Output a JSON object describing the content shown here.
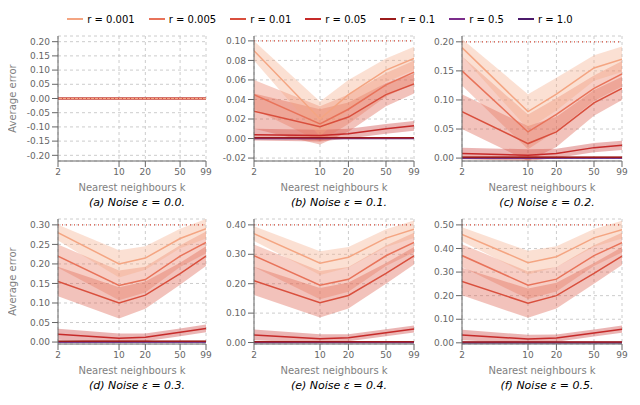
{
  "chart_data": [
    {
      "type": "line",
      "title": "(a) Noise ε = 0.0.",
      "x_label": "Nearest neighbours k",
      "y_label": "Average error",
      "legend": "top",
      "grid": true,
      "log": "x",
      "x": [
        2,
        10,
        20,
        50,
        99
      ],
      "xlim": [
        2,
        99
      ],
      "xticks": [
        2,
        10,
        20,
        50,
        99
      ],
      "ylim": [
        -0.22,
        0.22
      ],
      "yticks": [
        {
          "value": -0.2,
          "label": "-0.20"
        },
        -0.15,
        {
          "value": -0.1,
          "label": "-0.10"
        },
        -0.05,
        {
          "value": 0,
          "label": "0.00"
        },
        0.05,
        {
          "value": 0.1,
          "label": "0.10"
        },
        0.15,
        {
          "value": 0.2,
          "label": "0.20"
        }
      ],
      "annotations": [
        {
          "type": "hline",
          "y": 0.0,
          "color": "#d94f3d",
          "line_style": "dotted"
        }
      ],
      "series": [
        {
          "name": "r = 0.001",
          "color": "#f4a582",
          "values": [
            0.0,
            0.0,
            0.0,
            0.0,
            0.0
          ],
          "std": [
            0.0015,
            0.0015,
            0.0015,
            0.0015,
            0.0015
          ]
        },
        {
          "name": "r = 0.005",
          "color": "#e8735a",
          "values": [
            0.0,
            0.0,
            0.0,
            0.0,
            0.0
          ],
          "std": [
            0.001,
            0.001,
            0.001,
            0.001,
            0.001
          ]
        },
        {
          "name": "r = 0.01",
          "color": "#d94f3d",
          "values": [
            0.0,
            0.0,
            0.0,
            0.0,
            0.0
          ],
          "std": [
            0.0008,
            0.0008,
            0.0008,
            0.0008,
            0.0008
          ]
        },
        {
          "name": "r = 0.05",
          "color": "#c62a29",
          "values": [
            0.0,
            0.0,
            0.0,
            0.0,
            0.0
          ],
          "std": [
            0.0005,
            0.0005,
            0.0005,
            0.0005,
            0.0005
          ]
        },
        {
          "name": "r = 0.1",
          "color": "#9b1b1b",
          "values": [
            0.0,
            0.0,
            0.0,
            0.0,
            0.0
          ],
          "std": [
            0.0003,
            0.0003,
            0.0003,
            0.0003,
            0.0003
          ]
        },
        {
          "name": "r = 0.5",
          "color": "#7b2d8b",
          "values": [
            0.0,
            0.0,
            0.0,
            0.0,
            0.0
          ],
          "std": [
            0.0002,
            0.0002,
            0.0002,
            0.0002,
            0.0002
          ]
        },
        {
          "name": "r = 1.0",
          "color": "#4b1a6b",
          "values": [
            0.0,
            0.0,
            0.0,
            0.0,
            0.0
          ],
          "std": [
            0.0001,
            0.0001,
            0.0001,
            0.0001,
            0.0001
          ]
        }
      ]
    },
    {
      "type": "line",
      "title": "(b) Noise ε = 0.1.",
      "x_label": "Nearest neighbours k",
      "grid": true,
      "log": "x",
      "x": [
        2,
        10,
        20,
        50,
        99
      ],
      "xlim": [
        2,
        99
      ],
      "xticks": [
        2,
        10,
        20,
        50,
        99
      ],
      "ylim": [
        -0.023,
        0.105
      ],
      "yticks": [
        -0.02,
        {
          "value": 0,
          "label": "0.00"
        },
        0.02,
        0.04,
        0.06,
        0.08,
        {
          "value": 0.1,
          "label": "0.10"
        }
      ],
      "annotations": [
        {
          "type": "hline",
          "y": 0.1,
          "color": "#d94f3d",
          "line_style": "dotted"
        }
      ],
      "series": [
        {
          "name": "r = 0.001",
          "color": "#f4a582",
          "values": [
            0.09,
            0.02,
            0.045,
            0.07,
            0.082
          ],
          "std": [
            0.01,
            0.018,
            0.015,
            0.012,
            0.012
          ]
        },
        {
          "name": "r = 0.005",
          "color": "#e8735a",
          "values": [
            0.045,
            0.015,
            0.03,
            0.055,
            0.068
          ],
          "std": [
            0.015,
            0.018,
            0.015,
            0.012,
            0.012
          ]
        },
        {
          "name": "r = 0.01",
          "color": "#d94f3d",
          "values": [
            0.028,
            0.012,
            0.022,
            0.045,
            0.056
          ],
          "std": [
            0.018,
            0.018,
            0.015,
            0.012,
            0.01
          ]
        },
        {
          "name": "r = 0.05",
          "color": "#c62a29",
          "values": [
            0.004,
            0.003,
            0.005,
            0.01,
            0.013
          ],
          "std": [
            0.006,
            0.006,
            0.005,
            0.005,
            0.005
          ]
        },
        {
          "name": "r = 0.1",
          "color": "#9b1b1b",
          "values": [
            0.0008,
            0.0008,
            0.0008,
            0.0008,
            0.0008
          ],
          "std": [
            0.0008,
            0.0008,
            0.0008,
            0.0008,
            0.0008
          ]
        },
        {
          "name": "r = 0.5",
          "color": "#7b2d8b",
          "values": [
            0.0002,
            0.0002,
            0.0002,
            0.0002,
            0.0002
          ],
          "std": [
            0.0003,
            0.0003,
            0.0003,
            0.0003,
            0.0003
          ]
        },
        {
          "name": "r = 1.0",
          "color": "#4b1a6b",
          "values": [
            0.0001,
            0.0001,
            0.0001,
            0.0001,
            0.0001
          ],
          "std": [
            0.0001,
            0.0001,
            0.0001,
            0.0001,
            0.0001
          ]
        }
      ]
    },
    {
      "type": "line",
      "title": "(c) Noise ε = 0.2.",
      "x_label": "Nearest neighbours k",
      "grid": true,
      "log": "x",
      "x": [
        2,
        10,
        20,
        50,
        99
      ],
      "xlim": [
        2,
        99
      ],
      "xticks": [
        2,
        10,
        20,
        50,
        99
      ],
      "ylim": [
        -0.005,
        0.21
      ],
      "yticks": [
        {
          "value": 0,
          "label": "0.00"
        },
        0.05,
        {
          "value": 0.1,
          "label": "0.10"
        },
        0.15,
        {
          "value": 0.2,
          "label": "0.20"
        }
      ],
      "annotations": [
        {
          "type": "hline",
          "y": 0.2,
          "color": "#d94f3d",
          "line_style": "dotted"
        }
      ],
      "series": [
        {
          "name": "r = 0.001",
          "color": "#f4a582",
          "values": [
            0.19,
            0.08,
            0.11,
            0.155,
            0.17
          ],
          "std": [
            0.015,
            0.03,
            0.028,
            0.022,
            0.022
          ]
        },
        {
          "name": "r = 0.005",
          "color": "#e8735a",
          "values": [
            0.15,
            0.045,
            0.075,
            0.12,
            0.145
          ],
          "std": [
            0.025,
            0.03,
            0.028,
            0.022,
            0.022
          ]
        },
        {
          "name": "r = 0.01",
          "color": "#d94f3d",
          "values": [
            0.08,
            0.025,
            0.045,
            0.095,
            0.12
          ],
          "std": [
            0.03,
            0.03,
            0.026,
            0.022,
            0.02
          ]
        },
        {
          "name": "r = 0.05",
          "color": "#c62a29",
          "values": [
            0.008,
            0.005,
            0.008,
            0.018,
            0.022
          ],
          "std": [
            0.01,
            0.01,
            0.008,
            0.008,
            0.008
          ]
        },
        {
          "name": "r = 0.1",
          "color": "#9b1b1b",
          "values": [
            0.0015,
            0.0015,
            0.0015,
            0.0015,
            0.0015
          ],
          "std": [
            0.0015,
            0.0015,
            0.0015,
            0.0015,
            0.0015
          ]
        },
        {
          "name": "r = 0.5",
          "color": "#7b2d8b",
          "values": [
            0.0004,
            0.0004,
            0.0004,
            0.0004,
            0.0004
          ],
          "std": [
            0.0005,
            0.0005,
            0.0005,
            0.0005,
            0.0005
          ]
        },
        {
          "name": "r = 1.0",
          "color": "#4b1a6b",
          "values": [
            0.0002,
            0.0002,
            0.0002,
            0.0002,
            0.0002
          ],
          "std": [
            0.0002,
            0.0002,
            0.0002,
            0.0002,
            0.0002
          ]
        }
      ]
    },
    {
      "type": "line",
      "title": "(d) Noise ε = 0.3.",
      "x_label": "Nearest neighbours k",
      "y_label": "Average error",
      "grid": true,
      "log": "x",
      "x": [
        2,
        10,
        20,
        50,
        99
      ],
      "xlim": [
        2,
        99
      ],
      "xticks": [
        2,
        10,
        20,
        50,
        99
      ],
      "ylim": [
        -0.005,
        0.315
      ],
      "yticks": [
        {
          "value": 0,
          "label": "0.00"
        },
        0.05,
        {
          "value": 0.1,
          "label": "0.10"
        },
        0.15,
        {
          "value": 0.2,
          "label": "0.20"
        },
        0.25,
        {
          "value": 0.3,
          "label": "0.30"
        }
      ],
      "annotations": [
        {
          "type": "hline",
          "y": 0.3,
          "color": "#d94f3d",
          "line_style": "dotted"
        }
      ],
      "series": [
        {
          "name": "r = 0.001",
          "color": "#f4a582",
          "values": [
            0.28,
            0.2,
            0.215,
            0.265,
            0.29
          ],
          "std": [
            0.02,
            0.035,
            0.03,
            0.025,
            0.025
          ]
        },
        {
          "name": "r = 0.005",
          "color": "#e8735a",
          "values": [
            0.22,
            0.145,
            0.16,
            0.22,
            0.255
          ],
          "std": [
            0.03,
            0.038,
            0.033,
            0.028,
            0.028
          ]
        },
        {
          "name": "r = 0.01",
          "color": "#d94f3d",
          "values": [
            0.155,
            0.1,
            0.12,
            0.175,
            0.22
          ],
          "std": [
            0.038,
            0.04,
            0.035,
            0.028,
            0.025
          ]
        },
        {
          "name": "r = 0.05",
          "color": "#c62a29",
          "values": [
            0.02,
            0.01,
            0.012,
            0.025,
            0.035
          ],
          "std": [
            0.014,
            0.012,
            0.01,
            0.01,
            0.01
          ]
        },
        {
          "name": "r = 0.1",
          "color": "#9b1b1b",
          "values": [
            0.002,
            0.002,
            0.002,
            0.002,
            0.002
          ],
          "std": [
            0.002,
            0.002,
            0.002,
            0.002,
            0.002
          ]
        },
        {
          "name": "r = 0.5",
          "color": "#7b2d8b",
          "values": [
            0.001,
            0.001,
            0.001,
            0.001,
            0.001
          ],
          "std": [
            0.0008,
            0.0008,
            0.0008,
            0.0008,
            0.0008
          ]
        },
        {
          "name": "r = 1.0",
          "color": "#4b1a6b",
          "values": [
            0.0003,
            0.0003,
            0.0003,
            0.0003,
            0.0003
          ],
          "std": [
            0.0003,
            0.0003,
            0.0003,
            0.0003,
            0.0003
          ]
        }
      ]
    },
    {
      "type": "line",
      "title": "(e) Noise ε = 0.4.",
      "x_label": "Nearest neighbours k",
      "grid": true,
      "log": "x",
      "x": [
        2,
        10,
        20,
        50,
        99
      ],
      "xlim": [
        2,
        99
      ],
      "xticks": [
        2,
        10,
        20,
        50,
        99
      ],
      "ylim": [
        -0.005,
        0.42
      ],
      "yticks": [
        {
          "value": 0,
          "label": "0.00"
        },
        {
          "value": 0.1,
          "label": "0.10"
        },
        {
          "value": 0.2,
          "label": "0.20"
        },
        {
          "value": 0.3,
          "label": "0.30"
        },
        {
          "value": 0.4,
          "label": "0.40"
        }
      ],
      "annotations": [
        {
          "type": "hline",
          "y": 0.4,
          "color": "#d94f3d",
          "line_style": "dotted"
        }
      ],
      "series": [
        {
          "name": "r = 0.001",
          "color": "#f4a582",
          "values": [
            0.37,
            0.27,
            0.29,
            0.355,
            0.385
          ],
          "std": [
            0.025,
            0.04,
            0.035,
            0.03,
            0.03
          ]
        },
        {
          "name": "r = 0.005",
          "color": "#e8735a",
          "values": [
            0.295,
            0.195,
            0.215,
            0.295,
            0.34
          ],
          "std": [
            0.038,
            0.048,
            0.042,
            0.035,
            0.033
          ]
        },
        {
          "name": "r = 0.01",
          "color": "#d94f3d",
          "values": [
            0.21,
            0.135,
            0.16,
            0.235,
            0.295
          ],
          "std": [
            0.048,
            0.05,
            0.044,
            0.035,
            0.03
          ]
        },
        {
          "name": "r = 0.05",
          "color": "#c62a29",
          "values": [
            0.026,
            0.013,
            0.016,
            0.033,
            0.046
          ],
          "std": [
            0.018,
            0.015,
            0.012,
            0.012,
            0.012
          ]
        },
        {
          "name": "r = 0.1",
          "color": "#9b1b1b",
          "values": [
            0.003,
            0.003,
            0.003,
            0.003,
            0.003
          ],
          "std": [
            0.0025,
            0.0025,
            0.0025,
            0.0025,
            0.0025
          ]
        },
        {
          "name": "r = 0.5",
          "color": "#7b2d8b",
          "values": [
            0.0013,
            0.0013,
            0.0013,
            0.0013,
            0.0013
          ],
          "std": [
            0.001,
            0.001,
            0.001,
            0.001,
            0.001
          ]
        },
        {
          "name": "r = 1.0",
          "color": "#4b1a6b",
          "values": [
            0.0004,
            0.0004,
            0.0004,
            0.0004,
            0.0004
          ],
          "std": [
            0.0004,
            0.0004,
            0.0004,
            0.0004,
            0.0004
          ]
        }
      ]
    },
    {
      "type": "line",
      "title": "(f) Noise ε = 0.5.",
      "x_label": "Nearest neighbours k",
      "grid": true,
      "log": "x",
      "x": [
        2,
        10,
        20,
        50,
        99
      ],
      "xlim": [
        2,
        99
      ],
      "xticks": [
        2,
        10,
        20,
        50,
        99
      ],
      "ylim": [
        -0.005,
        0.525
      ],
      "yticks": [
        {
          "value": 0,
          "label": "0.00"
        },
        {
          "value": 0.1,
          "label": "0.10"
        },
        {
          "value": 0.2,
          "label": "0.20"
        },
        {
          "value": 0.3,
          "label": "0.30"
        },
        {
          "value": 0.4,
          "label": "0.40"
        },
        {
          "value": 0.5,
          "label": "0.50"
        }
      ],
      "annotations": [
        {
          "type": "hline",
          "y": 0.5,
          "color": "#d94f3d",
          "line_style": "dotted"
        }
      ],
      "series": [
        {
          "name": "r = 0.001",
          "color": "#f4a582",
          "values": [
            0.46,
            0.34,
            0.365,
            0.445,
            0.48
          ],
          "std": [
            0.03,
            0.05,
            0.044,
            0.038,
            0.038
          ]
        },
        {
          "name": "r = 0.005",
          "color": "#e8735a",
          "values": [
            0.37,
            0.244,
            0.27,
            0.37,
            0.425
          ],
          "std": [
            0.048,
            0.058,
            0.052,
            0.044,
            0.042
          ]
        },
        {
          "name": "r = 0.01",
          "color": "#d94f3d",
          "values": [
            0.26,
            0.168,
            0.2,
            0.294,
            0.368
          ],
          "std": [
            0.058,
            0.062,
            0.055,
            0.044,
            0.038
          ]
        },
        {
          "name": "r = 0.05",
          "color": "#c62a29",
          "values": [
            0.033,
            0.016,
            0.02,
            0.042,
            0.058
          ],
          "std": [
            0.022,
            0.018,
            0.015,
            0.015,
            0.015
          ]
        },
        {
          "name": "r = 0.1",
          "color": "#9b1b1b",
          "values": [
            0.004,
            0.004,
            0.004,
            0.004,
            0.004
          ],
          "std": [
            0.003,
            0.003,
            0.003,
            0.003,
            0.003
          ]
        },
        {
          "name": "r = 0.5",
          "color": "#7b2d8b",
          "values": [
            0.0016,
            0.0016,
            0.0016,
            0.0016,
            0.0016
          ],
          "std": [
            0.0012,
            0.0012,
            0.0012,
            0.0012,
            0.0012
          ]
        },
        {
          "name": "r = 1.0",
          "color": "#4b1a6b",
          "values": [
            0.0005,
            0.0005,
            0.0005,
            0.0005,
            0.0005
          ],
          "std": [
            0.0005,
            0.0005,
            0.0005,
            0.0005,
            0.0005
          ]
        }
      ]
    }
  ]
}
